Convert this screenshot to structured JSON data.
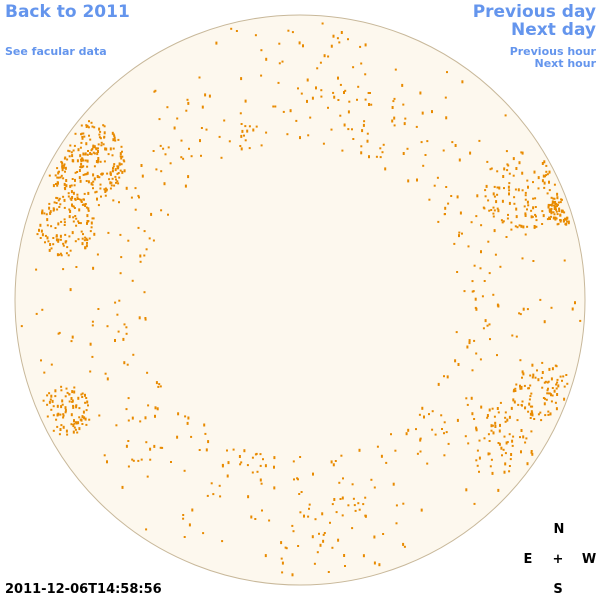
{
  "nav": {
    "back": "Back to 2011",
    "facular": "See facular data",
    "previous_day": "Previous day",
    "next_day": "Next day",
    "previous_hour": "Previous hour",
    "next_hour": "Next hour"
  },
  "timestamp": "2011-12-06T14:58:56",
  "compass": {
    "north": "N",
    "east": "E",
    "center": "+",
    "west": "W",
    "south": "S"
  }
}
